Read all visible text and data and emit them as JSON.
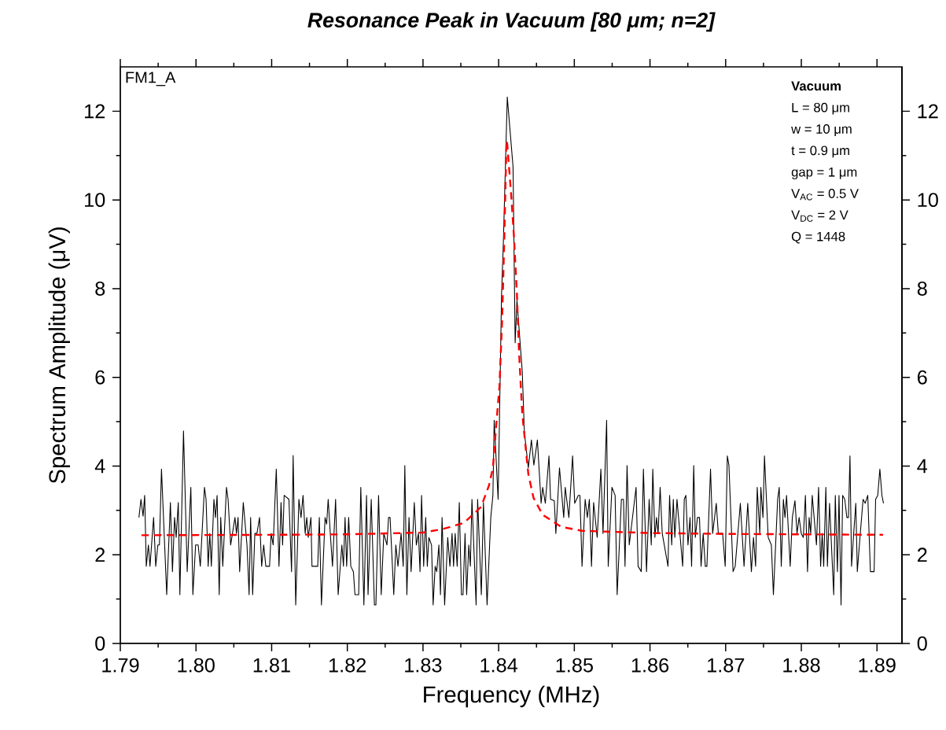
{
  "chart_data": {
    "type": "line",
    "title": "Resonance Peak in Vacuum [80 μm; n=2]",
    "xlabel": "Frequency (MHz)",
    "ylabel": "Spectrum Amplitude (μV)",
    "annotations": [
      "FM1_A",
      "Vacuum",
      "L = 80 μm",
      "w = 10 μm",
      "t = 0.9 μm",
      "gap = 1 μm",
      "V$_{AC}$ = 0.5 V",
      "V$_{DC}$ = 2 V",
      "Q = 1448"
    ],
    "xlim": [
      1.79,
      1.8933
    ],
    "ylim": [
      0,
      13
    ],
    "y2lim": [
      0,
      13
    ],
    "xticks": [
      1.79,
      {
        "value": 1.8,
        "label": "1.80"
      },
      1.81,
      1.82,
      1.83,
      1.84,
      1.85,
      1.86,
      1.87,
      1.88,
      1.89
    ],
    "yticks": [
      0,
      2,
      4,
      6,
      8,
      10,
      12
    ],
    "y2ticks": [
      0,
      2,
      4,
      6,
      8,
      10,
      12
    ],
    "series": [
      {
        "color": "#000000",
        "line_style": "solid",
        "x": [
          1.79246,
          1.79273,
          1.79301,
          1.79322,
          1.79343,
          1.79371,
          1.79392,
          1.7944,
          1.79468,
          1.79496,
          1.79517,
          1.79544,
          1.79613,
          1.79662,
          1.79689,
          1.79717,
          1.79738,
          1.79766,
          1.79787,
          1.79835,
          1.79884,
          1.79932,
          1.79959,
          1.79995,
          1.80029,
          1.80057,
          1.80112,
          1.80133,
          1.80161,
          1.80182,
          1.80203,
          1.80237,
          1.80258,
          1.80279,
          1.80307,
          1.80327,
          1.80354,
          1.80403,
          1.80424,
          1.80458,
          1.80515,
          1.80535,
          1.80556,
          1.80577,
          1.80625,
          1.80674,
          1.80702,
          1.80722,
          1.80749,
          1.80778,
          1.80806,
          1.8084,
          1.80868,
          1.80895,
          1.80923,
          1.80972,
          1.80993,
          1.8102,
          1.81061,
          1.81097,
          1.81124,
          1.81145,
          1.81165,
          1.81228,
          1.81263,
          1.81284,
          1.81318,
          1.8136,
          1.81388,
          1.81415,
          1.81443,
          1.81464,
          1.81484,
          1.81519,
          1.81533,
          1.81609,
          1.8163,
          1.81658,
          1.81706,
          1.81727,
          1.81747,
          1.81775,
          1.81804,
          1.81845,
          1.81879,
          1.81928,
          1.81949,
          1.8197,
          1.81991,
          1.82018,
          1.82046,
          1.8208,
          1.82101,
          1.8215,
          1.82178,
          1.82219,
          1.82254,
          1.82274,
          1.82316,
          1.82358,
          1.82378,
          1.82413,
          1.82448,
          1.82482,
          1.82524,
          1.82545,
          1.82565,
          1.82614,
          1.82641,
          1.82669,
          1.82711,
          1.82739,
          1.8276,
          1.82787,
          1.82815,
          1.82843,
          1.82885,
          1.82912,
          1.8294,
          1.82961,
          1.82981,
          1.83009,
          1.83036,
          1.83057,
          1.83078,
          1.83113,
          1.83134,
          1.83161,
          1.83182,
          1.8321,
          1.83231,
          1.83252,
          1.83286,
          1.83327,
          1.83356,
          1.83384,
          1.83404,
          1.83425,
          1.83452,
          1.8348,
          1.83508,
          1.83529,
          1.83556,
          1.83577,
          1.83605,
          1.83626,
          1.83647,
          1.83702,
          1.83722,
          1.83771,
          1.83799,
          1.83847,
          1.83896,
          1.83924,
          1.83941,
          1.83993,
          1.84038,
          1.84062,
          1.84114,
          1.8419,
          1.84218,
          1.84242,
          1.84312,
          1.8434,
          1.84392,
          1.84433,
          1.84465,
          1.84512,
          1.84561,
          1.84582,
          1.84617,
          1.84665,
          1.84686,
          1.84735,
          1.84756,
          1.84804,
          1.8486,
          1.8488,
          1.84928,
          1.84977,
          1.85005,
          1.85053,
          1.85074,
          1.85102,
          1.85143,
          1.85172,
          1.85199,
          1.85227,
          1.85255,
          1.85302,
          1.85351,
          1.85379,
          1.85427,
          1.85448,
          1.85497,
          1.85539,
          1.85566,
          1.85622,
          1.8565,
          1.8567,
          1.85697,
          1.85726,
          1.85816,
          1.85843,
          1.85885,
          1.85913,
          1.85954,
          1.85989,
          1.86017,
          1.86037,
          1.86065,
          1.86086,
          1.86107,
          1.86134,
          1.86162,
          1.86238,
          1.86259,
          1.86287,
          1.86308,
          1.86328,
          1.86357,
          1.86432,
          1.86453,
          1.86474,
          1.86502,
          1.86529,
          1.8655,
          1.86578,
          1.86599,
          1.86627,
          1.86654,
          1.86675,
          1.86703,
          1.86731,
          1.86752,
          1.868,
          1.86828,
          1.86876,
          1.86903,
          1.8696,
          1.86994,
          1.87022,
          1.87043,
          1.87098,
          1.87126,
          1.87194,
          1.87243,
          1.87292,
          1.8734,
          1.87368,
          1.87396,
          1.87417,
          1.87451,
          1.87465,
          1.87493,
          1.87513,
          1.87562,
          1.87604,
          1.87631,
          1.87687,
          1.87708,
          1.87735,
          1.87763,
          1.87784,
          1.87805,
          1.87853,
          1.87881,
          1.87916,
          1.87943,
          1.87971,
          1.87999,
          1.88026,
          1.88054,
          1.88082,
          1.88103,
          1.88124,
          1.88144,
          1.882,
          1.88228,
          1.88255,
          1.88276,
          1.88296,
          1.88324,
          1.88345,
          1.88373,
          1.88428,
          1.88449,
          1.88477,
          1.88498,
          1.88525,
          1.88546,
          1.88574,
          1.88602,
          1.88623,
          1.88643,
          1.88664,
          1.88692,
          1.8872,
          1.8874,
          1.88775,
          1.88816,
          1.88844,
          1.88878,
          1.88913,
          1.88962,
          1.88982,
          1.8901,
          1.89038,
          1.89065,
          1.89086
        ],
        "values": [
          2.84,
          3.25,
          2.87,
          3.34,
          1.74,
          2.22,
          1.74,
          2.84,
          1.74,
          2.22,
          2.22,
          3.93,
          1.1,
          3.18,
          1.62,
          2.84,
          2.39,
          3.18,
          1.1,
          4.79,
          1.62,
          3.52,
          1.1,
          2.22,
          2.22,
          1.74,
          3.52,
          3.25,
          1.74,
          2.48,
          1.74,
          3.25,
          2.84,
          3.34,
          1.1,
          2.84,
          1.74,
          3.52,
          3.25,
          2.22,
          2.84,
          2.48,
          2.84,
          1.62,
          3.18,
          2.22,
          1.1,
          2.84,
          1.1,
          2.48,
          2.48,
          2.84,
          1.74,
          2.22,
          1.74,
          1.74,
          2.48,
          2.22,
          3.93,
          1.74,
          3.18,
          2.22,
          3.34,
          3.25,
          1.62,
          4.24,
          0.87,
          3.25,
          2.84,
          3.34,
          2.48,
          2.84,
          2.39,
          2.84,
          1.74,
          1.74,
          2.84,
          0.87,
          2.84,
          2.69,
          3.25,
          2.48,
          1.74,
          3.25,
          1.1,
          2.22,
          1.74,
          2.84,
          1.74,
          2.84,
          1.74,
          1.62,
          1.1,
          1.1,
          3.52,
          0.87,
          3.34,
          1.1,
          3.25,
          0.87,
          0.87,
          3.34,
          1.1,
          2.48,
          2.22,
          2.84,
          2.84,
          1.1,
          2.22,
          1.74,
          2.48,
          1.74,
          4.01,
          1.1,
          2.84,
          1.62,
          3.18,
          2.22,
          2.48,
          1.62,
          3.34,
          1.74,
          2.84,
          1.74,
          2.39,
          2.22,
          0.87,
          1.74,
          1.62,
          2.22,
          1.1,
          2.84,
          0.87,
          2.39,
          1.74,
          2.48,
          1.74,
          2.48,
          1.74,
          3.18,
          1.1,
          1.1,
          2.48,
          1.1,
          2.22,
          1.74,
          3.25,
          0.87,
          3.25,
          1.1,
          3.18,
          0.87,
          2.84,
          3.34,
          5.03,
          3.25,
          7.85,
          9.03,
          12.32,
          10.75,
          6.78,
          7.73,
          6.13,
          4.76,
          3.96,
          4.59,
          4.02,
          4.59,
          3.16,
          3.52,
          3.16,
          4.23,
          3.25,
          3.22,
          2.48,
          3.96,
          2.84,
          3.52,
          2.84,
          4.23,
          3.16,
          3.34,
          3.34,
          1.74,
          3.25,
          2.84,
          3.25,
          1.74,
          3.18,
          2.39,
          3.93,
          2.48,
          5.03,
          1.74,
          3.52,
          3.34,
          1.1,
          3.25,
          3.25,
          1.74,
          4.01,
          2.22,
          3.52,
          1.74,
          1.62,
          3.93,
          1.62,
          3.25,
          2.22,
          3.93,
          2.39,
          2.84,
          2.48,
          3.52,
          2.48,
          1.74,
          3.34,
          2.22,
          3.25,
          2.39,
          3.25,
          1.74,
          3.25,
          3.34,
          2.22,
          2.84,
          1.74,
          4.01,
          2.39,
          2.84,
          2.84,
          1.74,
          2.48,
          1.74,
          1.74,
          3.93,
          2.48,
          3.16,
          2.48,
          2.48,
          1.74,
          4.23,
          4.02,
          1.62,
          1.74,
          3.16,
          1.74,
          3.16,
          1.62,
          2.39,
          1.74,
          3.52,
          2.48,
          3.52,
          2.84,
          4.23,
          2.39,
          2.22,
          1.1,
          3.25,
          3.52,
          1.74,
          3.25,
          2.84,
          3.34,
          1.74,
          2.84,
          3.22,
          2.48,
          2.84,
          2.48,
          2.39,
          3.34,
          1.62,
          2.84,
          2.48,
          3.34,
          2.22,
          3.52,
          1.74,
          2.48,
          1.74,
          3.52,
          1.74,
          3.16,
          1.1,
          3.34,
          1.62,
          3.34,
          0.87,
          3.34,
          3.25,
          2.84,
          2.84,
          4.23,
          1.74,
          2.48,
          3.16,
          1.62,
          2.39,
          3.25,
          3.16,
          3.34,
          1.62,
          1.62,
          3.25,
          3.34,
          3.93,
          3.34,
          3.16
        ]
      },
      {
        "color": "#ff0000",
        "line_style": "dashed",
        "x": [
          1.7928,
          1.81,
          1.82,
          1.83,
          1.83262,
          1.83543,
          1.83768,
          1.83872,
          1.83924,
          1.83966,
          1.8401,
          1.84045,
          1.84073,
          1.84104,
          1.84114,
          1.84166,
          1.84201,
          1.84242,
          1.8427,
          1.84312,
          1.84392,
          1.84461,
          1.84582,
          1.84825,
          1.85102,
          1.86,
          1.87,
          1.8908
        ],
        "values": [
          2.44,
          2.45,
          2.46,
          2.5,
          2.58,
          2.72,
          3.08,
          3.56,
          3.96,
          4.89,
          5.78,
          7.25,
          9.03,
          11.34,
          11.25,
          10.1,
          9.21,
          7.85,
          6.54,
          5.18,
          3.82,
          3.28,
          2.9,
          2.63,
          2.54,
          2.49,
          2.47,
          2.45
        ]
      }
    ]
  }
}
